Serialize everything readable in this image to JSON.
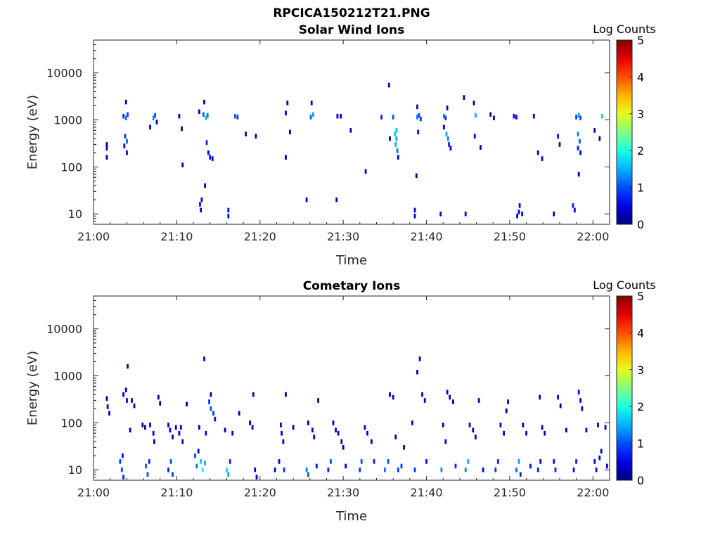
{
  "figure_title": "RPCICA150212T21.PNG",
  "chart_data": [
    {
      "type": "heatmap",
      "title": "Solar Wind Ions",
      "xlabel": "Time",
      "ylabel": "Energy (eV)",
      "x_ticks": [
        "21:00",
        "21:10",
        "21:20",
        "21:30",
        "21:40",
        "21:50",
        "22:00"
      ],
      "x_range_minutes": [
        0,
        62
      ],
      "y_scale": "log",
      "y_ticks": [
        10,
        100,
        1000,
        10000
      ],
      "y_tick_labels": [
        "10",
        "100",
        "1000",
        "10000"
      ],
      "ylim": [
        6,
        50000
      ],
      "colorbar": {
        "label": "Log Counts",
        "ticks": [
          "0",
          "1",
          "2",
          "3",
          "4",
          "5"
        ],
        "range": [
          0,
          5
        ],
        "colormap": "jet"
      },
      "cells": [
        [
          1.6,
          300,
          0.3
        ],
        [
          1.6,
          250,
          0.2
        ],
        [
          1.6,
          160,
          0.2
        ],
        [
          3.6,
          1200,
          0.8
        ],
        [
          3.9,
          1100,
          1.2
        ],
        [
          4.1,
          1300,
          0.9
        ],
        [
          3.8,
          450,
          0.9
        ],
        [
          4.0,
          350,
          1.1
        ],
        [
          3.7,
          280,
          0.6
        ],
        [
          3.9,
          2400,
          0.3
        ],
        [
          4.0,
          200,
          0.5
        ],
        [
          7.2,
          1100,
          1.3
        ],
        [
          7.4,
          1250,
          1.0
        ],
        [
          6.8,
          700,
          0.3
        ],
        [
          7.6,
          900,
          0.2
        ],
        [
          10.3,
          1200,
          0.2
        ],
        [
          10.7,
          110,
          0.2
        ],
        [
          10.6,
          650,
          0.2
        ],
        [
          12.8,
          16,
          0.7
        ],
        [
          13.0,
          20,
          0.5
        ],
        [
          12.9,
          12,
          0.5
        ],
        [
          13.2,
          1300,
          1.1
        ],
        [
          13.5,
          1100,
          1.6
        ],
        [
          13.7,
          1250,
          1.2
        ],
        [
          13.3,
          2400,
          0.3
        ],
        [
          13.6,
          330,
          0.8
        ],
        [
          13.8,
          200,
          0.6
        ],
        [
          14.0,
          160,
          0.6
        ],
        [
          14.3,
          150,
          0.5
        ],
        [
          13.4,
          40,
          0.2
        ],
        [
          12.7,
          1500,
          0.3
        ],
        [
          16.2,
          9,
          0.7
        ],
        [
          16.2,
          12,
          0.7
        ],
        [
          17.0,
          1200,
          1.1
        ],
        [
          17.3,
          1150,
          0.9
        ],
        [
          18.3,
          500,
          0.2
        ],
        [
          19.5,
          450,
          0.2
        ],
        [
          23.1,
          1400,
          0.4
        ],
        [
          23.3,
          2300,
          0.2
        ],
        [
          23.6,
          550,
          0.3
        ],
        [
          23.1,
          160,
          0.2
        ],
        [
          26.1,
          1150,
          1.1
        ],
        [
          26.4,
          1300,
          1.4
        ],
        [
          26.2,
          2300,
          0.3
        ],
        [
          25.6,
          20,
          0.3
        ],
        [
          29.2,
          20,
          0.3
        ],
        [
          29.3,
          1200,
          0.5
        ],
        [
          29.7,
          1200,
          0.4
        ],
        [
          30.9,
          600,
          0.3
        ],
        [
          32.7,
          80,
          0.3
        ],
        [
          34.6,
          1150,
          0.8
        ],
        [
          35.5,
          5500,
          0.3
        ],
        [
          36.0,
          1150,
          1.0
        ],
        [
          36.2,
          500,
          1.7
        ],
        [
          36.4,
          400,
          1.4
        ],
        [
          36.3,
          300,
          1.5
        ],
        [
          36.5,
          220,
          1.2
        ],
        [
          36.4,
          600,
          1.6
        ],
        [
          36.6,
          160,
          0.5
        ],
        [
          35.6,
          400,
          0.3
        ],
        [
          38.6,
          9,
          0.6
        ],
        [
          38.6,
          12,
          0.6
        ],
        [
          38.9,
          1150,
          1.2
        ],
        [
          39.1,
          1250,
          1.0
        ],
        [
          39.3,
          1050,
          0.9
        ],
        [
          38.9,
          1900,
          0.3
        ],
        [
          39.0,
          550,
          0.3
        ],
        [
          38.8,
          65,
          0.2
        ],
        [
          41.7,
          10,
          0.4
        ],
        [
          42.1,
          1200,
          1.3
        ],
        [
          42.3,
          1100,
          0.9
        ],
        [
          42.5,
          1800,
          0.3
        ],
        [
          42.4,
          500,
          1.5
        ],
        [
          42.6,
          400,
          1.3
        ],
        [
          42.7,
          300,
          0.8
        ],
        [
          42.9,
          250,
          0.5
        ],
        [
          42.1,
          700,
          0.5
        ],
        [
          44.7,
          10,
          0.4
        ],
        [
          44.5,
          3000,
          0.3
        ],
        [
          45.9,
          1250,
          1.5
        ],
        [
          45.7,
          2300,
          0.3
        ],
        [
          45.8,
          450,
          0.4
        ],
        [
          46.5,
          260,
          0.2
        ],
        [
          47.7,
          1300,
          0.3
        ],
        [
          48.1,
          1100,
          0.3
        ],
        [
          50.5,
          1200,
          0.6
        ],
        [
          50.8,
          1150,
          0.5
        ],
        [
          50.9,
          9,
          0.5
        ],
        [
          51.1,
          11,
          0.5
        ],
        [
          51.2,
          15,
          0.3
        ],
        [
          51.5,
          10,
          0.4
        ],
        [
          52.9,
          1200,
          0.3
        ],
        [
          53.4,
          200,
          0.3
        ],
        [
          53.9,
          150,
          0.3
        ],
        [
          55.3,
          10,
          0.4
        ],
        [
          55.8,
          450,
          0.7
        ],
        [
          56.0,
          300,
          0.4
        ],
        [
          57.6,
          15,
          0.8
        ],
        [
          57.8,
          12,
          0.6
        ],
        [
          58.0,
          1150,
          0.9
        ],
        [
          58.3,
          1250,
          1.4
        ],
        [
          58.5,
          1100,
          1.0
        ],
        [
          58.2,
          500,
          1.3
        ],
        [
          58.4,
          350,
          1.1
        ],
        [
          58.2,
          250,
          0.8
        ],
        [
          58.5,
          200,
          0.6
        ],
        [
          58.3,
          70,
          0.2
        ],
        [
          60.2,
          600,
          0.2
        ],
        [
          61.1,
          1200,
          1.7
        ],
        [
          60.8,
          400,
          0.3
        ]
      ]
    },
    {
      "type": "heatmap",
      "title": "Cometary Ions",
      "xlabel": "Time",
      "ylabel": "Energy (eV)",
      "x_ticks": [
        "21:00",
        "21:10",
        "21:20",
        "21:30",
        "21:40",
        "21:50",
        "22:00"
      ],
      "x_range_minutes": [
        0,
        62
      ],
      "y_scale": "log",
      "y_ticks": [
        10,
        100,
        1000,
        10000
      ],
      "y_tick_labels": [
        "10",
        "100",
        "1000",
        "10000"
      ],
      "ylim": [
        6,
        50000
      ],
      "colorbar": {
        "label": "Log Counts",
        "ticks": [
          "0",
          "1",
          "2",
          "3",
          "4",
          "5"
        ],
        "range": [
          0,
          5
        ],
        "colormap": "jet"
      },
      "cells": [
        [
          1.6,
          330,
          0.3
        ],
        [
          1.7,
          220,
          0.3
        ],
        [
          1.9,
          160,
          0.3
        ],
        [
          3.2,
          15,
          0.9
        ],
        [
          3.4,
          10,
          1.0
        ],
        [
          3.5,
          20,
          0.7
        ],
        [
          3.6,
          7,
          0.8
        ],
        [
          3.6,
          400,
          0.3
        ],
        [
          3.9,
          500,
          0.5
        ],
        [
          4.0,
          300,
          0.3
        ],
        [
          4.1,
          1600,
          0.3
        ],
        [
          4.6,
          300,
          0.3
        ],
        [
          4.9,
          230,
          0.3
        ],
        [
          4.4,
          70,
          0.2
        ],
        [
          5.9,
          90,
          0.3
        ],
        [
          6.2,
          80,
          0.3
        ],
        [
          6.3,
          12,
          1.1
        ],
        [
          6.5,
          8,
          1.0
        ],
        [
          6.7,
          15,
          0.8
        ],
        [
          6.8,
          90,
          0.4
        ],
        [
          7.2,
          60,
          0.3
        ],
        [
          7.3,
          40,
          0.3
        ],
        [
          7.8,
          350,
          0.3
        ],
        [
          8.0,
          260,
          0.3
        ],
        [
          9.0,
          10,
          0.8
        ],
        [
          9.3,
          15,
          1.0
        ],
        [
          9.5,
          8,
          0.9
        ],
        [
          9.0,
          90,
          0.4
        ],
        [
          9.2,
          70,
          0.4
        ],
        [
          9.5,
          50,
          0.4
        ],
        [
          9.9,
          80,
          0.3
        ],
        [
          10.3,
          60,
          0.3
        ],
        [
          10.5,
          80,
          0.5
        ],
        [
          10.7,
          40,
          0.3
        ],
        [
          11.2,
          250,
          0.2
        ],
        [
          12.2,
          20,
          1.0
        ],
        [
          12.4,
          12,
          1.2
        ],
        [
          12.6,
          25,
          0.6
        ],
        [
          12.9,
          15,
          1.6
        ],
        [
          13.1,
          10,
          1.9
        ],
        [
          13.4,
          14,
          1.5
        ],
        [
          12.7,
          80,
          0.4
        ],
        [
          13.5,
          60,
          0.4
        ],
        [
          13.3,
          2300,
          0.3
        ],
        [
          13.9,
          280,
          0.8
        ],
        [
          14.1,
          200,
          1.0
        ],
        [
          14.4,
          160,
          0.9
        ],
        [
          14.6,
          120,
          0.7
        ],
        [
          14.1,
          400,
          0.3
        ],
        [
          16.0,
          10,
          1.7
        ],
        [
          16.2,
          8,
          1.4
        ],
        [
          16.4,
          15,
          0.8
        ],
        [
          15.8,
          70,
          0.3
        ],
        [
          16.7,
          60,
          0.3
        ],
        [
          17.5,
          160,
          0.3
        ],
        [
          18.8,
          100,
          0.3
        ],
        [
          19.1,
          80,
          0.4
        ],
        [
          19.4,
          10,
          0.6
        ],
        [
          19.6,
          7,
          0.6
        ],
        [
          19.2,
          400,
          0.2
        ],
        [
          21.8,
          10,
          0.5
        ],
        [
          22.3,
          15,
          0.6
        ],
        [
          22.5,
          90,
          0.5
        ],
        [
          22.6,
          60,
          0.5
        ],
        [
          22.8,
          40,
          0.4
        ],
        [
          22.9,
          10,
          0.9
        ],
        [
          23.1,
          400,
          0.2
        ],
        [
          24.0,
          80,
          0.3
        ],
        [
          25.6,
          10,
          1.3
        ],
        [
          25.8,
          8,
          1.1
        ],
        [
          25.8,
          100,
          0.3
        ],
        [
          26.3,
          70,
          0.4
        ],
        [
          26.5,
          50,
          0.4
        ],
        [
          26.8,
          12,
          0.7
        ],
        [
          27.0,
          300,
          0.2
        ],
        [
          28.2,
          10,
          0.8
        ],
        [
          28.5,
          15,
          1.0
        ],
        [
          28.8,
          100,
          0.4
        ],
        [
          29.1,
          70,
          0.5
        ],
        [
          29.4,
          60,
          0.4
        ],
        [
          29.8,
          40,
          0.3
        ],
        [
          30.0,
          30,
          0.3
        ],
        [
          30.3,
          12,
          0.6
        ],
        [
          32.0,
          10,
          0.9
        ],
        [
          32.2,
          15,
          1.0
        ],
        [
          32.6,
          80,
          0.4
        ],
        [
          32.9,
          60,
          0.4
        ],
        [
          33.4,
          40,
          0.3
        ],
        [
          33.7,
          15,
          0.8
        ],
        [
          35.0,
          10,
          1.2
        ],
        [
          35.4,
          15,
          1.0
        ],
        [
          35.6,
          400,
          0.4
        ],
        [
          36.0,
          350,
          0.3
        ],
        [
          36.3,
          50,
          0.3
        ],
        [
          36.6,
          10,
          0.9
        ],
        [
          37.0,
          12,
          0.9
        ],
        [
          37.3,
          30,
          0.3
        ],
        [
          38.3,
          100,
          0.3
        ],
        [
          38.6,
          10,
          0.9
        ],
        [
          38.9,
          1200,
          0.3
        ],
        [
          39.2,
          2300,
          0.3
        ],
        [
          39.5,
          400,
          0.4
        ],
        [
          39.8,
          300,
          0.3
        ],
        [
          40.0,
          15,
          0.7
        ],
        [
          41.8,
          10,
          1.3
        ],
        [
          42.0,
          90,
          0.3
        ],
        [
          42.3,
          40,
          0.3
        ],
        [
          42.5,
          450,
          0.5
        ],
        [
          42.8,
          350,
          0.4
        ],
        [
          43.2,
          280,
          0.3
        ],
        [
          43.5,
          12,
          0.8
        ],
        [
          44.7,
          10,
          1.3
        ],
        [
          45.0,
          15,
          1.5
        ],
        [
          45.2,
          90,
          0.4
        ],
        [
          45.6,
          70,
          0.4
        ],
        [
          45.9,
          50,
          0.3
        ],
        [
          46.3,
          300,
          0.2
        ],
        [
          46.8,
          10,
          0.5
        ],
        [
          48.3,
          10,
          0.9
        ],
        [
          48.6,
          15,
          0.8
        ],
        [
          48.9,
          90,
          0.3
        ],
        [
          49.3,
          60,
          0.3
        ],
        [
          49.6,
          180,
          0.3
        ],
        [
          49.8,
          280,
          0.3
        ],
        [
          50.8,
          10,
          1.2
        ],
        [
          51.1,
          15,
          1.4
        ],
        [
          51.3,
          8,
          0.8
        ],
        [
          51.6,
          90,
          0.3
        ],
        [
          52.0,
          60,
          0.3
        ],
        [
          52.5,
          12,
          0.7
        ],
        [
          53.4,
          10,
          0.8
        ],
        [
          53.7,
          15,
          0.6
        ],
        [
          53.9,
          80,
          0.4
        ],
        [
          53.6,
          350,
          0.3
        ],
        [
          54.2,
          60,
          0.3
        ],
        [
          55.3,
          15,
          0.7
        ],
        [
          55.5,
          10,
          0.8
        ],
        [
          55.8,
          350,
          0.4
        ],
        [
          56.1,
          230,
          0.3
        ],
        [
          56.8,
          70,
          0.2
        ],
        [
          57.7,
          10,
          0.7
        ],
        [
          58.0,
          15,
          0.8
        ],
        [
          58.3,
          450,
          0.6
        ],
        [
          58.5,
          300,
          0.4
        ],
        [
          58.7,
          200,
          0.3
        ],
        [
          59.2,
          70,
          0.3
        ],
        [
          60.2,
          15,
          0.6
        ],
        [
          60.4,
          10,
          0.7
        ],
        [
          60.6,
          90,
          0.3
        ],
        [
          60.8,
          18,
          0.5
        ],
        [
          61.0,
          25,
          0.5
        ],
        [
          61.5,
          80,
          0.3
        ],
        [
          61.7,
          12,
          0.5
        ]
      ]
    }
  ]
}
